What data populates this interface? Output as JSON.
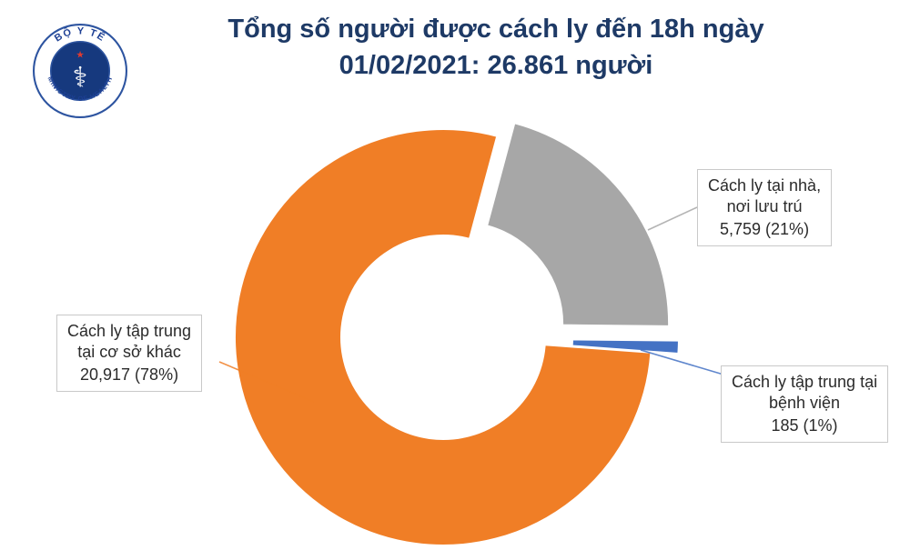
{
  "header": {
    "title_line1": "Tổng số người được cách ly đến 18h ngày",
    "title_line2": "01/02/2021: 26.861 người"
  },
  "logo": {
    "top_text": "BỘ Y TẾ",
    "bottom_text": "MINISTRY OF HEALTH",
    "symbol": "caduceus-icon",
    "ring_color": "#2d54a0",
    "disc_color": "#16397e",
    "accent_color": "#e03a2f"
  },
  "chart_data": {
    "type": "pie",
    "donut": true,
    "title": "Tổng số người được cách ly đến 18h ngày 01/02/2021: 26.861 người",
    "total_value": "26.861",
    "total_unit": "người",
    "start_angle_deg": 15,
    "direction": "clockwise",
    "legend_position": "callout-labels",
    "slices": [
      {
        "id": "home-quarantine",
        "name": "Cách ly tại nhà, nơi lưu trú",
        "value": 5759,
        "percent": 21,
        "color": "#a7a7a7",
        "explode": 24,
        "label_lines": [
          "Cách ly tại nhà,",
          "nơi lưu trú",
          "5,759 (21%)"
        ]
      },
      {
        "id": "hospital-quarantine",
        "name": "Cách ly tập trung tại bệnh viện",
        "value": 185,
        "percent": 1,
        "color": "#4472c4",
        "explode": 30,
        "label_lines": [
          "Cách ly tập trung tại",
          "bệnh viện",
          "185 (1%)"
        ]
      },
      {
        "id": "other-facility-quarantine",
        "name": "Cách ly tập trung tại cơ sở khác",
        "value": 20917,
        "percent": 78,
        "color": "#f07e26",
        "explode": 0,
        "label_lines": [
          "Cách ly tập trung",
          "tại cơ sở khác",
          "20,917 (78%)"
        ]
      }
    ]
  },
  "colors": {
    "title": "#1e3a66",
    "label_text": "#2b2b2b",
    "box_border": "#c9c9c9"
  }
}
